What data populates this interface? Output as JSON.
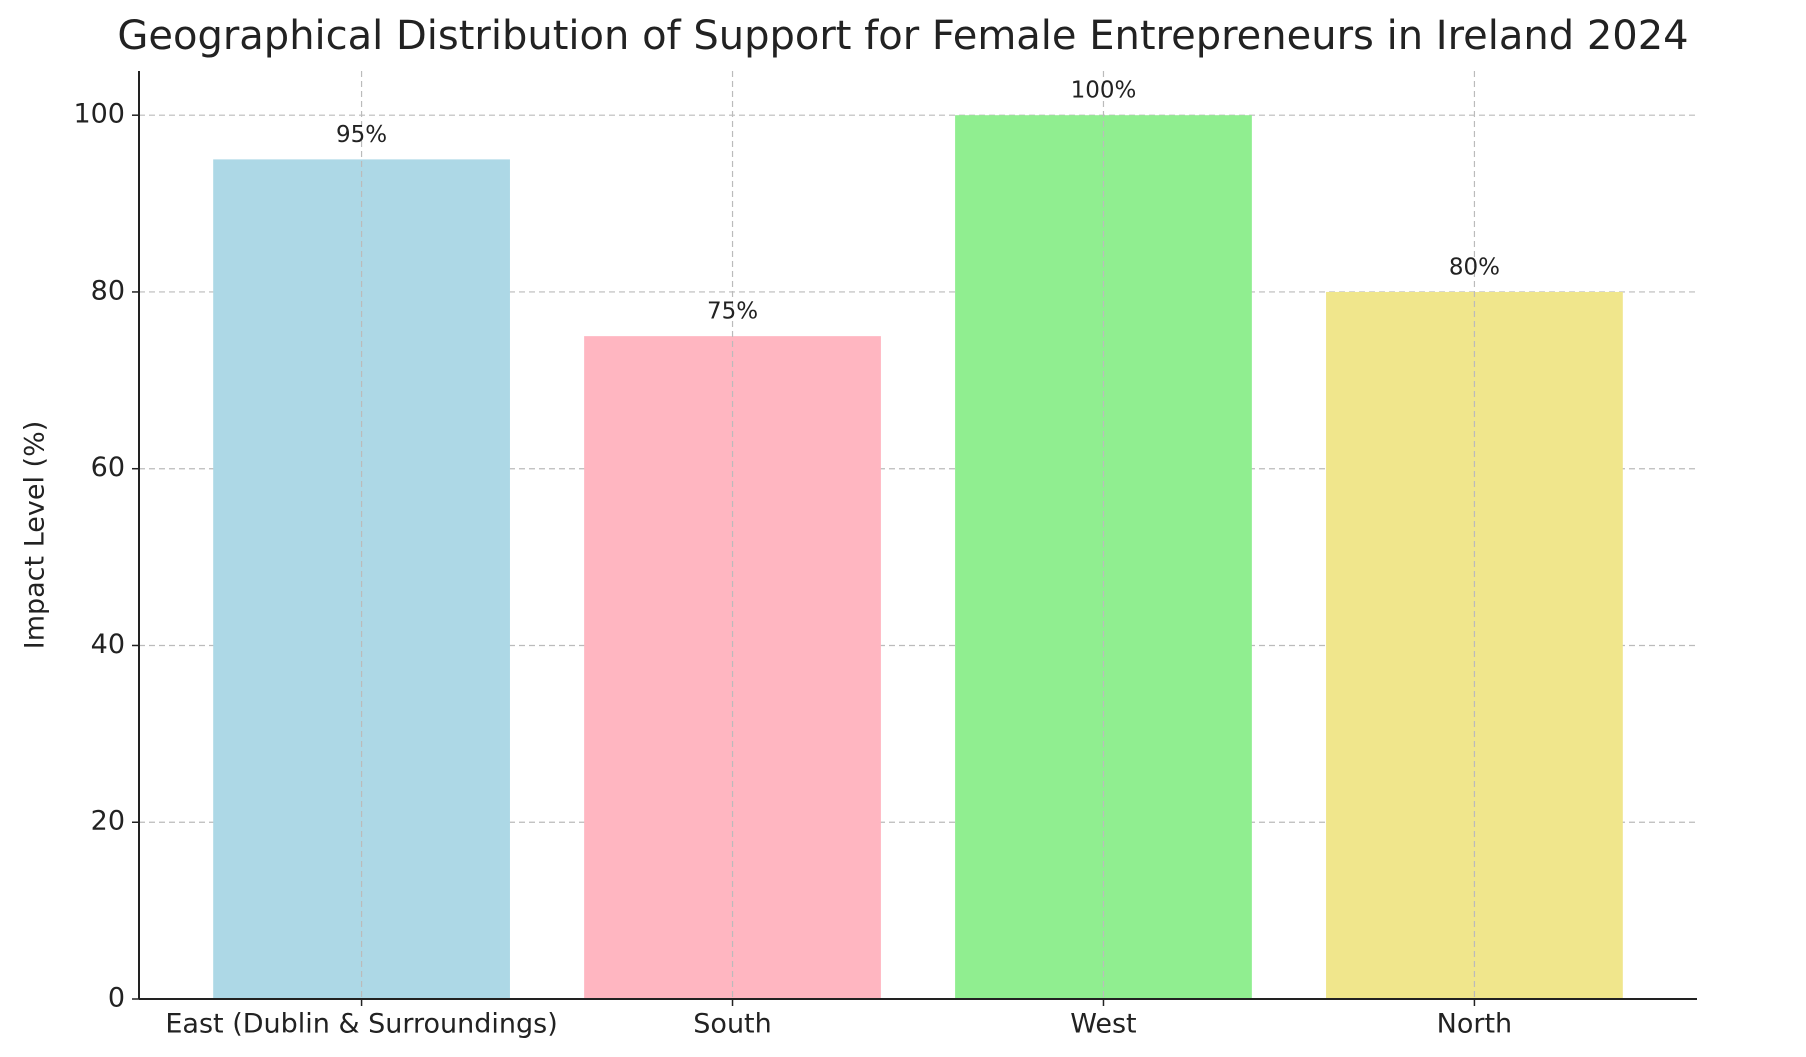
{
  "chart_data": {
    "type": "bar",
    "title": "Geographical Distribution of Support for Female Entrepreneurs in Ireland 2024",
    "y_label": "Impact Level (%)",
    "categories": [
      "East (Dublin & Surroundings)",
      "South",
      "West",
      "North"
    ],
    "values": [
      95,
      75,
      100,
      80
    ],
    "value_labels": [
      "95%",
      "75%",
      "100%",
      "80%"
    ],
    "colors": [
      "#add8e6",
      "#ffb6c1",
      "#90ee90",
      "#f0e68c"
    ],
    "ylim": [
      0,
      105
    ],
    "yticks": [
      0,
      20,
      40,
      60,
      80,
      100
    ],
    "grid": true
  }
}
